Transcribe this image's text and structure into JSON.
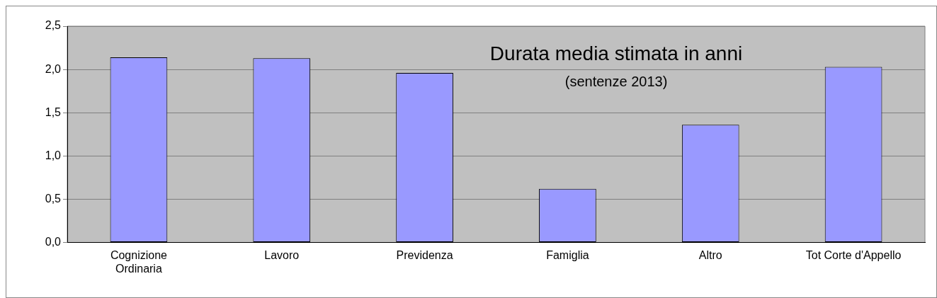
{
  "chart_data": {
    "type": "bar",
    "title": "Durata media stimata in anni",
    "subtitle": "(sentenze 2013)",
    "categories": [
      "Cognizione\nOrdinaria",
      "Lavoro",
      "Previdenza",
      "Famiglia",
      "Altro",
      "Tot Corte d'Appello"
    ],
    "values": [
      2.14,
      2.13,
      1.96,
      0.62,
      1.36,
      2.03
    ],
    "color": "#9999ff",
    "ylim": [
      0,
      2.5
    ],
    "yticks": [
      {
        "value": 0,
        "label": "0,0"
      },
      {
        "value": 0.5,
        "label": "0,5"
      },
      {
        "value": 1,
        "label": "1,0"
      },
      {
        "value": 1.5,
        "label": "1,5"
      },
      {
        "value": 2,
        "label": "2,0"
      },
      {
        "value": 2.5,
        "label": "2,5"
      }
    ],
    "grid": "y",
    "legend": false
  }
}
